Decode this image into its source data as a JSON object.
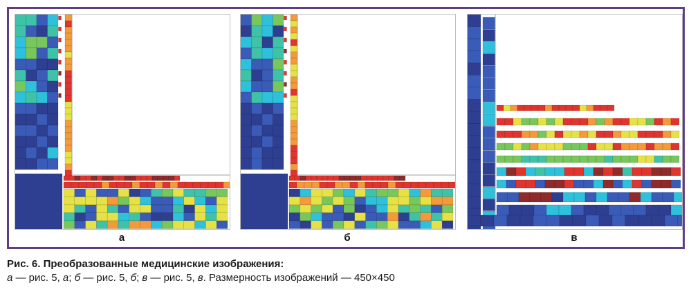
{
  "panels": [
    {
      "label": "а"
    },
    {
      "label": "б"
    },
    {
      "label": "в"
    }
  ],
  "caption": {
    "title": "Рис. 6. Преобразованные медицинские изображения:",
    "s1_i": "а",
    "s1": " — рис. 5, ",
    "s2_i": "а",
    "s2": "; ",
    "s3_i": "б",
    "s3": " — рис. 5, ",
    "s4_i": "б",
    "s4": "; ",
    "s5_i": "в",
    "s5": " — рис. 5, ",
    "s6_i": "в",
    "s6": ". Размерность изображений — 450×450"
  },
  "palette": {
    "navy": "#2e3f92",
    "blue": "#3a5bb8",
    "cyan": "#2fc0dc",
    "teal": "#3fc3a8",
    "green": "#78c75c",
    "yellow": "#e6e245",
    "orange": "#f39a3a",
    "red": "#e0352e",
    "darkred": "#8f2b2b",
    "frame": "#5e3d86"
  }
}
